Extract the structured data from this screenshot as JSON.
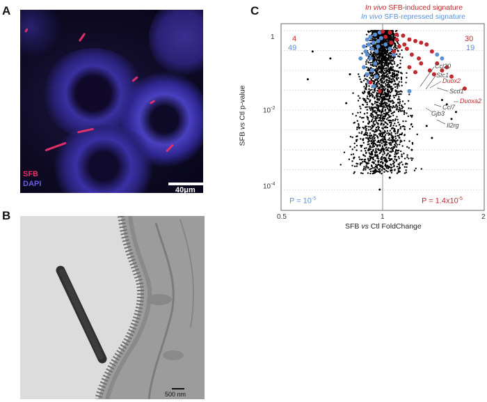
{
  "panels": {
    "a": {
      "letter": "A",
      "sfb_label": "SFB",
      "dapi_label": "DAPI",
      "scale_label": "40μm",
      "colors": {
        "sfb": "#e0306a",
        "dapi": "#5b4fd0"
      }
    },
    "b": {
      "letter": "B",
      "scale_label": "500 nm"
    },
    "c": {
      "letter": "C",
      "legend_induced_italic": "In vivo",
      "legend_induced_rest": " SFB-induced signature",
      "legend_repressed_italic": "In vivo",
      "legend_repressed_rest": " SFB-repressed signature",
      "colors": {
        "induced": "#c0282d",
        "repressed": "#5b8fd4",
        "other": "#000000"
      },
      "counts": {
        "top_left_induced": "4",
        "bottom_left_repressed": "49",
        "top_right_induced": "30",
        "bottom_right_repressed": "19"
      },
      "p_left": "P = 10",
      "p_left_exp": "-5",
      "p_right": "P = 1.4x10",
      "p_right_exp": "-5",
      "xlabel_a": "SFB ",
      "xlabel_vs": "vs",
      "xlabel_b": " Ctl FoldChange",
      "ylabel_a": "SFB ",
      "ylabel_vs": "vs",
      "ylabel_b": " Ctl p-value",
      "x_ticks": [
        "0.5",
        "1",
        "2"
      ],
      "y_ticks": [
        {
          "base": "1",
          "exp": ""
        },
        {
          "base": "10",
          "exp": "-2"
        },
        {
          "base": "10",
          "exp": "-4"
        }
      ],
      "genes": [
        {
          "name": "Ccl20",
          "induced": false
        },
        {
          "name": "Stc1",
          "induced": false
        },
        {
          "name": "Duox2",
          "induced": true
        },
        {
          "name": "Scd1",
          "induced": false
        },
        {
          "name": "Duoxa2",
          "induced": true
        },
        {
          "name": "Ccl7",
          "induced": false
        },
        {
          "name": "Gjb3",
          "induced": false
        },
        {
          "name": "Il2rg",
          "induced": false
        }
      ]
    }
  },
  "chart_data": {
    "type": "scatter",
    "xlabel": "SFB vs Ctl FoldChange",
    "ylabel": "SFB vs Ctl p-value",
    "x_scale": "log",
    "y_scale": "log",
    "xlim": [
      0.5,
      2
    ],
    "ylim": [
      3e-05,
      1.5
    ],
    "x_ticks": [
      0.5,
      1,
      2
    ],
    "y_ticks": [
      1,
      0.01,
      0.0001
    ],
    "grid": "horizontal-dashed",
    "series": [
      {
        "name": "In vivo SFB-induced signature",
        "color": "#c0282d",
        "points": [
          [
            1.0,
            0.95
          ],
          [
            1.05,
            0.9
          ],
          [
            1.1,
            0.8
          ],
          [
            1.15,
            0.75
          ],
          [
            1.2,
            0.6
          ],
          [
            1.25,
            0.55
          ],
          [
            1.3,
            0.5
          ],
          [
            1.35,
            0.45
          ],
          [
            1.12,
            0.4
          ],
          [
            1.18,
            0.35
          ],
          [
            1.08,
            0.3
          ],
          [
            1.22,
            0.25
          ],
          [
            1.28,
            0.2
          ],
          [
            1.4,
            0.3
          ],
          [
            1.45,
            0.15
          ],
          [
            1.5,
            0.1
          ],
          [
            1.55,
            0.12
          ],
          [
            1.6,
            0.07
          ],
          [
            1.75,
            0.035
          ],
          [
            1.1,
            0.6
          ],
          [
            1.02,
            0.7
          ],
          [
            1.06,
            0.5
          ],
          [
            1.16,
            0.45
          ],
          [
            1.3,
            0.15
          ],
          [
            1.38,
            0.1
          ],
          [
            1.42,
            0.08
          ],
          [
            1.2,
            0.12
          ],
          [
            1.25,
            0.09
          ],
          [
            0.92,
            0.05
          ],
          [
            0.98,
            0.03
          ]
        ]
      },
      {
        "name": "In vivo SFB-repressed signature",
        "color": "#5b8fd4",
        "points": [
          [
            0.98,
            0.9
          ],
          [
            0.95,
            0.8
          ],
          [
            0.92,
            0.7
          ],
          [
            0.9,
            0.6
          ],
          [
            0.94,
            0.5
          ],
          [
            0.97,
            0.55
          ],
          [
            0.91,
            0.45
          ],
          [
            0.93,
            0.35
          ],
          [
            0.96,
            0.3
          ],
          [
            0.9,
            0.25
          ],
          [
            0.92,
            0.2
          ],
          [
            0.95,
            0.15
          ],
          [
            0.88,
            0.12
          ],
          [
            0.93,
            0.1
          ],
          [
            0.9,
            0.08
          ],
          [
            0.96,
            0.07
          ],
          [
            0.91,
            0.05
          ],
          [
            0.94,
            0.04
          ],
          [
            0.99,
            0.65
          ],
          [
            0.97,
            0.4
          ],
          [
            0.89,
            0.3
          ],
          [
            1.02,
            0.45
          ],
          [
            1.05,
            0.35
          ],
          [
            1.08,
            0.25
          ],
          [
            1.45,
            0.25
          ],
          [
            1.5,
            0.2
          ],
          [
            1.2,
            0.03
          ],
          [
            0.86,
            0.2
          ],
          [
            0.88,
            0.4
          ]
        ]
      },
      {
        "name": "",
        "color": "#000000",
        "points": [
          [
            0.62,
            0.3
          ],
          [
            0.7,
            0.2
          ],
          [
            0.6,
            0.06
          ],
          [
            0.78,
            0.015
          ],
          [
            0.8,
            0.08
          ],
          [
            1.5,
            0.018
          ],
          [
            1.55,
            0.014
          ],
          [
            1.65,
            0.009
          ],
          [
            1.6,
            0.006
          ],
          [
            1.35,
            0.004
          ],
          [
            1.4,
            0.002
          ],
          [
            1.22,
            0.001
          ],
          [
            0.95,
            0.0003
          ],
          [
            0.98,
            0.0001
          ],
          [
            1.05,
            0.0002
          ],
          [
            1.02,
            0.0004
          ],
          [
            0.92,
            0.0006
          ],
          [
            1.1,
            0.0008
          ]
        ]
      }
    ]
  }
}
